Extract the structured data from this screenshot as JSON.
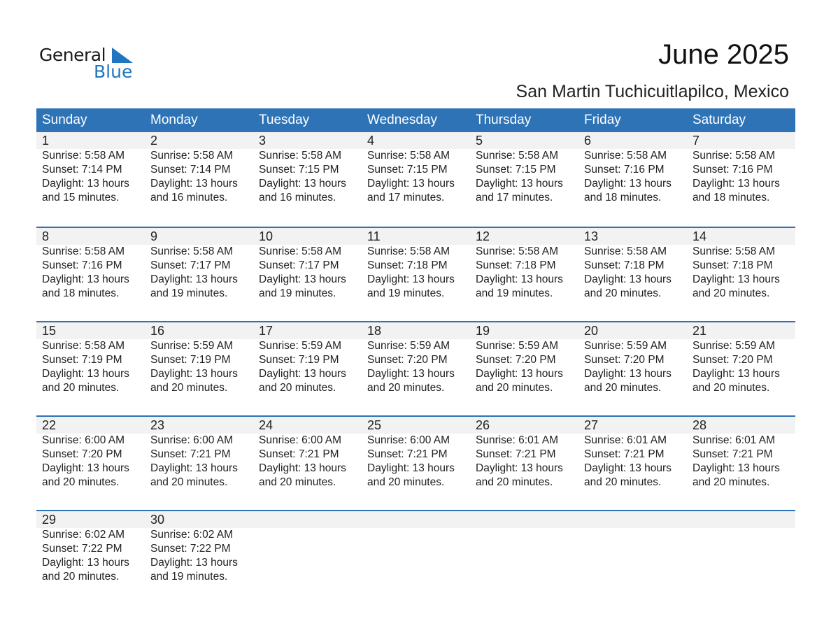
{
  "logo": {
    "word1": "General",
    "word2": "Blue",
    "color": "#1f75c0"
  },
  "title": "June 2025",
  "location": "San Martin Tuchicuitlapilco, Mexico",
  "header_color": "#2e73b6",
  "weekdays": [
    "Sunday",
    "Monday",
    "Tuesday",
    "Wednesday",
    "Thursday",
    "Friday",
    "Saturday"
  ],
  "weeks": [
    [
      {
        "day": "1",
        "sunrise": "Sunrise: 5:58 AM",
        "sunset": "Sunset: 7:14 PM",
        "daylight1": "Daylight: 13 hours",
        "daylight2": "and 15 minutes."
      },
      {
        "day": "2",
        "sunrise": "Sunrise: 5:58 AM",
        "sunset": "Sunset: 7:14 PM",
        "daylight1": "Daylight: 13 hours",
        "daylight2": "and 16 minutes."
      },
      {
        "day": "3",
        "sunrise": "Sunrise: 5:58 AM",
        "sunset": "Sunset: 7:15 PM",
        "daylight1": "Daylight: 13 hours",
        "daylight2": "and 16 minutes."
      },
      {
        "day": "4",
        "sunrise": "Sunrise: 5:58 AM",
        "sunset": "Sunset: 7:15 PM",
        "daylight1": "Daylight: 13 hours",
        "daylight2": "and 17 minutes."
      },
      {
        "day": "5",
        "sunrise": "Sunrise: 5:58 AM",
        "sunset": "Sunset: 7:15 PM",
        "daylight1": "Daylight: 13 hours",
        "daylight2": "and 17 minutes."
      },
      {
        "day": "6",
        "sunrise": "Sunrise: 5:58 AM",
        "sunset": "Sunset: 7:16 PM",
        "daylight1": "Daylight: 13 hours",
        "daylight2": "and 18 minutes."
      },
      {
        "day": "7",
        "sunrise": "Sunrise: 5:58 AM",
        "sunset": "Sunset: 7:16 PM",
        "daylight1": "Daylight: 13 hours",
        "daylight2": "and 18 minutes."
      }
    ],
    [
      {
        "day": "8",
        "sunrise": "Sunrise: 5:58 AM",
        "sunset": "Sunset: 7:16 PM",
        "daylight1": "Daylight: 13 hours",
        "daylight2": "and 18 minutes."
      },
      {
        "day": "9",
        "sunrise": "Sunrise: 5:58 AM",
        "sunset": "Sunset: 7:17 PM",
        "daylight1": "Daylight: 13 hours",
        "daylight2": "and 19 minutes."
      },
      {
        "day": "10",
        "sunrise": "Sunrise: 5:58 AM",
        "sunset": "Sunset: 7:17 PM",
        "daylight1": "Daylight: 13 hours",
        "daylight2": "and 19 minutes."
      },
      {
        "day": "11",
        "sunrise": "Sunrise: 5:58 AM",
        "sunset": "Sunset: 7:18 PM",
        "daylight1": "Daylight: 13 hours",
        "daylight2": "and 19 minutes."
      },
      {
        "day": "12",
        "sunrise": "Sunrise: 5:58 AM",
        "sunset": "Sunset: 7:18 PM",
        "daylight1": "Daylight: 13 hours",
        "daylight2": "and 19 minutes."
      },
      {
        "day": "13",
        "sunrise": "Sunrise: 5:58 AM",
        "sunset": "Sunset: 7:18 PM",
        "daylight1": "Daylight: 13 hours",
        "daylight2": "and 20 minutes."
      },
      {
        "day": "14",
        "sunrise": "Sunrise: 5:58 AM",
        "sunset": "Sunset: 7:18 PM",
        "daylight1": "Daylight: 13 hours",
        "daylight2": "and 20 minutes."
      }
    ],
    [
      {
        "day": "15",
        "sunrise": "Sunrise: 5:58 AM",
        "sunset": "Sunset: 7:19 PM",
        "daylight1": "Daylight: 13 hours",
        "daylight2": "and 20 minutes."
      },
      {
        "day": "16",
        "sunrise": "Sunrise: 5:59 AM",
        "sunset": "Sunset: 7:19 PM",
        "daylight1": "Daylight: 13 hours",
        "daylight2": "and 20 minutes."
      },
      {
        "day": "17",
        "sunrise": "Sunrise: 5:59 AM",
        "sunset": "Sunset: 7:19 PM",
        "daylight1": "Daylight: 13 hours",
        "daylight2": "and 20 minutes."
      },
      {
        "day": "18",
        "sunrise": "Sunrise: 5:59 AM",
        "sunset": "Sunset: 7:20 PM",
        "daylight1": "Daylight: 13 hours",
        "daylight2": "and 20 minutes."
      },
      {
        "day": "19",
        "sunrise": "Sunrise: 5:59 AM",
        "sunset": "Sunset: 7:20 PM",
        "daylight1": "Daylight: 13 hours",
        "daylight2": "and 20 minutes."
      },
      {
        "day": "20",
        "sunrise": "Sunrise: 5:59 AM",
        "sunset": "Sunset: 7:20 PM",
        "daylight1": "Daylight: 13 hours",
        "daylight2": "and 20 minutes."
      },
      {
        "day": "21",
        "sunrise": "Sunrise: 5:59 AM",
        "sunset": "Sunset: 7:20 PM",
        "daylight1": "Daylight: 13 hours",
        "daylight2": "and 20 minutes."
      }
    ],
    [
      {
        "day": "22",
        "sunrise": "Sunrise: 6:00 AM",
        "sunset": "Sunset: 7:20 PM",
        "daylight1": "Daylight: 13 hours",
        "daylight2": "and 20 minutes."
      },
      {
        "day": "23",
        "sunrise": "Sunrise: 6:00 AM",
        "sunset": "Sunset: 7:21 PM",
        "daylight1": "Daylight: 13 hours",
        "daylight2": "and 20 minutes."
      },
      {
        "day": "24",
        "sunrise": "Sunrise: 6:00 AM",
        "sunset": "Sunset: 7:21 PM",
        "daylight1": "Daylight: 13 hours",
        "daylight2": "and 20 minutes."
      },
      {
        "day": "25",
        "sunrise": "Sunrise: 6:00 AM",
        "sunset": "Sunset: 7:21 PM",
        "daylight1": "Daylight: 13 hours",
        "daylight2": "and 20 minutes."
      },
      {
        "day": "26",
        "sunrise": "Sunrise: 6:01 AM",
        "sunset": "Sunset: 7:21 PM",
        "daylight1": "Daylight: 13 hours",
        "daylight2": "and 20 minutes."
      },
      {
        "day": "27",
        "sunrise": "Sunrise: 6:01 AM",
        "sunset": "Sunset: 7:21 PM",
        "daylight1": "Daylight: 13 hours",
        "daylight2": "and 20 minutes."
      },
      {
        "day": "28",
        "sunrise": "Sunrise: 6:01 AM",
        "sunset": "Sunset: 7:21 PM",
        "daylight1": "Daylight: 13 hours",
        "daylight2": "and 20 minutes."
      }
    ],
    [
      {
        "day": "29",
        "sunrise": "Sunrise: 6:02 AM",
        "sunset": "Sunset: 7:22 PM",
        "daylight1": "Daylight: 13 hours",
        "daylight2": "and 20 minutes."
      },
      {
        "day": "30",
        "sunrise": "Sunrise: 6:02 AM",
        "sunset": "Sunset: 7:22 PM",
        "daylight1": "Daylight: 13 hours",
        "daylight2": "and 19 minutes."
      }
    ]
  ]
}
